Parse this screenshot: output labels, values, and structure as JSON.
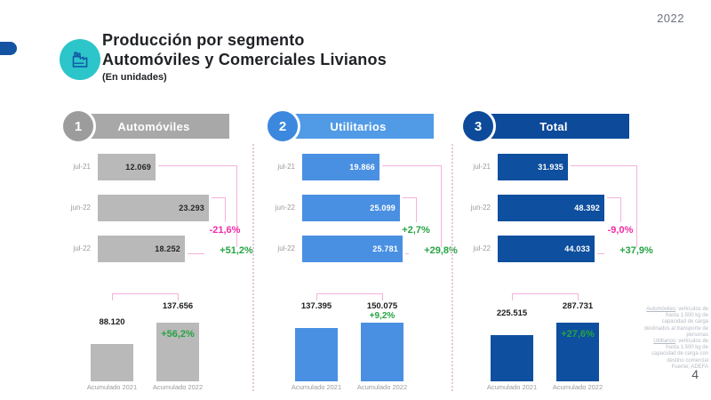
{
  "slide": {
    "year": "2022",
    "page": "4",
    "title": {
      "line1": "Producción por segmento",
      "line2": "Automóviles y Comerciales Livianos",
      "line3": "(En unidades)"
    }
  },
  "colors": {
    "teal": "#2cc5c9",
    "icon_stroke": "#1358a8",
    "accent_navy": "#1353a2",
    "magenta": "#f22ba6",
    "green": "#27a343",
    "pink_line": "#f7b1de"
  },
  "footnote": {
    "definitions": [
      {
        "term": "Automóviles",
        "text": ": vehículos de hasta 1.500 kg de capacidad de carga destinados al transporte de personas"
      },
      {
        "term": "Utilitarios",
        "text": ": vehículos de hasta 1.500 kg de capacidad de carga con destino comercial"
      }
    ],
    "source": "Fuente: ADEFA"
  },
  "chart_data": [
    {
      "type": "bar",
      "panel_number": "1",
      "title": "Automóviles",
      "theme": {
        "bar": "#b9b9b9",
        "header": "#a8a8a8",
        "circle": "#9c9c9c",
        "value_text": "#262626"
      },
      "monthly": {
        "orientation": "horizontal",
        "categories": [
          "jul-21",
          "jun-22",
          "jul-22"
        ],
        "values": [
          12069,
          23293,
          18252
        ],
        "value_labels": [
          "12.069",
          "23.293",
          "18.252"
        ],
        "mom_change": {
          "label": "-21,6%",
          "value": -21.6
        },
        "yoy_change": {
          "label": "+51,2%",
          "value": 51.2
        }
      },
      "cumulative": {
        "categories": [
          "Acumulado 2021",
          "Acumulado 2022"
        ],
        "values": [
          88120,
          137656
        ],
        "value_labels": [
          "88.120",
          "137.656"
        ],
        "change": {
          "label": "+56,2%",
          "value": 56.2,
          "position": "inside"
        }
      }
    },
    {
      "type": "bar",
      "panel_number": "2",
      "title": "Utilitarios",
      "theme": {
        "bar": "#4a90e2",
        "header": "#519ae6",
        "circle": "#3c88de",
        "value_text": "#ffffff"
      },
      "monthly": {
        "orientation": "horizontal",
        "categories": [
          "jul-21",
          "jun-22",
          "jul-22"
        ],
        "values": [
          19866,
          25099,
          25781
        ],
        "value_labels": [
          "19.866",
          "25.099",
          "25.781"
        ],
        "mom_change": {
          "label": "+2,7%",
          "value": 2.7
        },
        "yoy_change": {
          "label": "+29,8%",
          "value": 29.8
        }
      },
      "cumulative": {
        "categories": [
          "Acumulado 2021",
          "Acumulado 2022"
        ],
        "values": [
          137395,
          150075
        ],
        "value_labels": [
          "137.395",
          "150.075"
        ],
        "change": {
          "label": "+9,2%",
          "value": 9.2,
          "position": "above"
        }
      }
    },
    {
      "type": "bar",
      "panel_number": "3",
      "title": "Total",
      "theme": {
        "bar": "#0e4f9f",
        "header": "#0d4a9a",
        "circle": "#0d4a9a",
        "value_text": "#ffffff"
      },
      "monthly": {
        "orientation": "horizontal",
        "categories": [
          "jul-21",
          "jun-22",
          "jul-22"
        ],
        "values": [
          31935,
          48392,
          44033
        ],
        "value_labels": [
          "31.935",
          "48.392",
          "44.033"
        ],
        "mom_change": {
          "label": "-9,0%",
          "value": -9.0
        },
        "yoy_change": {
          "label": "+37,9%",
          "value": 37.9
        }
      },
      "cumulative": {
        "categories": [
          "Acumulado 2021",
          "Acumulado 2022"
        ],
        "values": [
          225515,
          287731
        ],
        "value_labels": [
          "225.515",
          "287.731"
        ],
        "change": {
          "label": "+27,6%",
          "value": 27.6,
          "position": "inside"
        }
      }
    }
  ]
}
